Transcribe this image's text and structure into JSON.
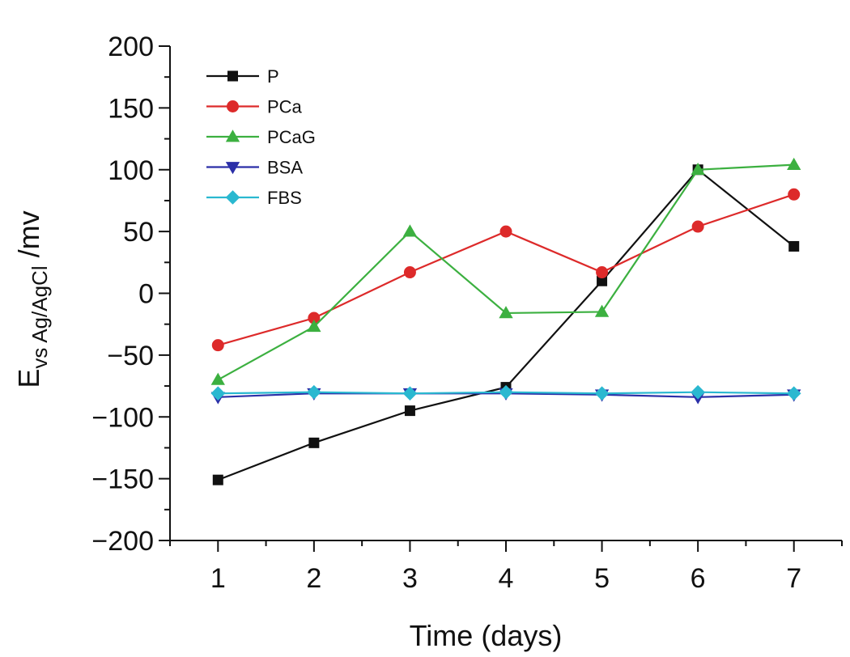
{
  "chart_data": {
    "type": "line",
    "title": "",
    "xlabel": "Time (days)",
    "ylabel": {
      "base": "E",
      "subscript": "vs Ag/AgCl",
      "suffix": " /mv"
    },
    "x": [
      1,
      2,
      3,
      4,
      5,
      6,
      7
    ],
    "xlim": [
      0.5,
      7.5
    ],
    "ylim": [
      -200,
      200
    ],
    "yticks": [
      -200,
      -150,
      -100,
      -50,
      0,
      50,
      100,
      150,
      200
    ],
    "grid": false,
    "legend_position": "top-left",
    "series": [
      {
        "name": "P",
        "color": "#111111",
        "marker": "square",
        "values": [
          -151,
          -121,
          -95,
          -76,
          10,
          100,
          38
        ]
      },
      {
        "name": "PCa",
        "color": "#dd2a2a",
        "marker": "circle",
        "values": [
          -42,
          -20,
          17,
          50,
          17,
          54,
          80
        ]
      },
      {
        "name": "PCaG",
        "color": "#3cb040",
        "marker": "triangle-up",
        "values": [
          -70,
          -27,
          50,
          -16,
          -15,
          100,
          104
        ]
      },
      {
        "name": "BSA",
        "color": "#2b2fa8",
        "marker": "triangle-down",
        "values": [
          -84,
          -81,
          -81,
          -81,
          -82,
          -84,
          -82
        ]
      },
      {
        "name": "FBS",
        "color": "#2ab8d0",
        "marker": "diamond",
        "values": [
          -81,
          -80,
          -81,
          -80,
          -81,
          -80,
          -81
        ]
      }
    ]
  }
}
